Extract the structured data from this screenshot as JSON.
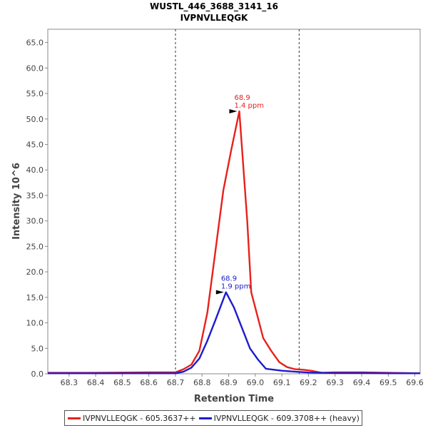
{
  "chart_data": {
    "type": "line",
    "title": "WUSTL_446_3688_3141_16",
    "subtitle": "IVPNVLLEQGK",
    "xlabel": "Retention Time",
    "ylabel": "Intensity 10^6",
    "xlim": [
      68.22,
      69.62
    ],
    "ylim": [
      0,
      67.6
    ],
    "x_ticks": [
      "68.3",
      "68.4",
      "68.5",
      "68.6",
      "68.7",
      "68.8",
      "68.9",
      "69.0",
      "69.1",
      "69.2",
      "69.3",
      "69.4",
      "69.5",
      "69.6"
    ],
    "y_ticks": [
      "0.0",
      "5.0",
      "10.0",
      "15.0",
      "20.0",
      "25.0",
      "30.0",
      "35.0",
      "40.0",
      "45.0",
      "50.0",
      "55.0",
      "60.0",
      "65.0"
    ],
    "vlines": [
      68.7,
      69.165
    ],
    "legend_position": "bottom",
    "series": [
      {
        "name": "IVPNVLLEQGK - 605.3637++",
        "color": "#e8201b",
        "x": [
          68.22,
          68.4,
          68.6,
          68.7,
          68.73,
          68.76,
          68.79,
          68.82,
          68.85,
          68.88,
          68.91,
          68.94,
          68.97,
          68.985,
          69.0,
          69.03,
          69.06,
          69.09,
          69.12,
          69.15,
          69.18,
          69.21,
          69.25,
          69.3,
          69.4,
          69.5,
          69.62
        ],
        "y": [
          0.2,
          0.2,
          0.3,
          0.3,
          0.9,
          1.8,
          4.5,
          12.0,
          24.0,
          36.0,
          44.0,
          51.5,
          30.0,
          16.0,
          13.0,
          7.0,
          4.5,
          2.3,
          1.3,
          0.9,
          0.8,
          0.6,
          0.2,
          0.3,
          0.3,
          0.2,
          0.1
        ],
        "peak": {
          "x": 68.94,
          "y": 51.5,
          "rt_label": "68.9",
          "ppm_label": "1.4 ppm"
        }
      },
      {
        "name": "IVPNVLLEQGK - 609.3708++ (heavy)",
        "color": "#1c1ccf",
        "x": [
          68.22,
          68.4,
          68.6,
          68.7,
          68.73,
          68.76,
          68.79,
          68.82,
          68.85,
          68.89,
          68.92,
          68.95,
          68.98,
          69.01,
          69.04,
          69.07,
          69.1,
          69.15,
          69.2,
          69.3,
          69.4,
          69.5,
          69.62
        ],
        "y": [
          0.1,
          0.1,
          0.1,
          0.1,
          0.4,
          1.2,
          3.0,
          6.5,
          10.5,
          16.0,
          13.0,
          9.0,
          5.0,
          2.8,
          1.0,
          0.8,
          0.6,
          0.4,
          0.25,
          0.15,
          0.15,
          0.1,
          0.1
        ],
        "peak": {
          "x": 68.89,
          "y": 16.0,
          "rt_label": "68.9",
          "ppm_label": "1.9 ppm"
        }
      }
    ]
  }
}
